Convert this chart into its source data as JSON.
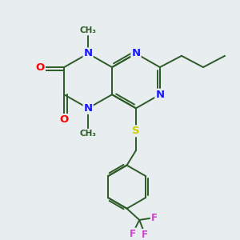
{
  "background_color": "#e8edf0",
  "bond_color": "#2d5a27",
  "n_color": "#1a1aff",
  "o_color": "#ff0000",
  "s_color": "#cccc00",
  "f_color": "#cc44cc",
  "figsize": [
    3.0,
    3.0
  ],
  "dpi": 100,
  "xlim": [
    0,
    10
  ],
  "ylim": [
    0,
    10
  ]
}
